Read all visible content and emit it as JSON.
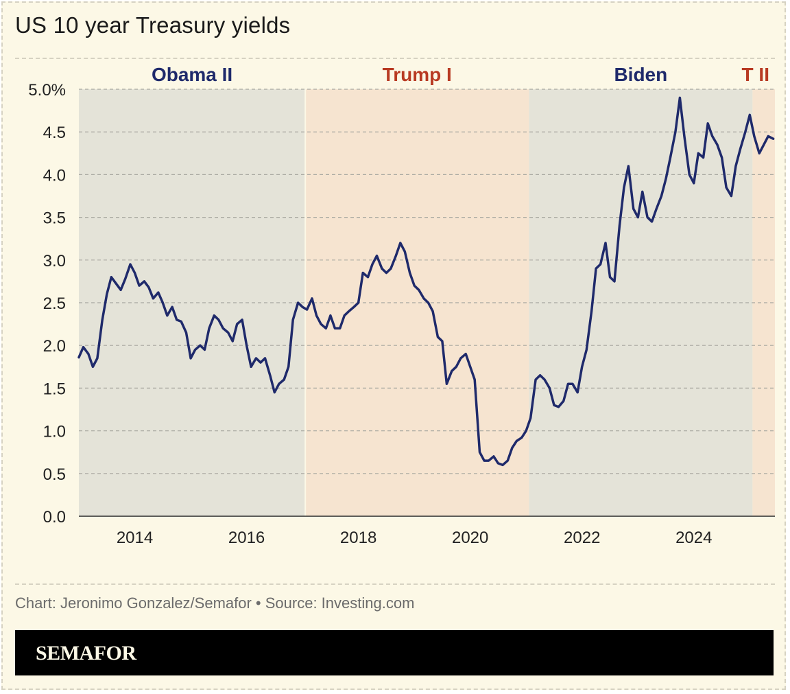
{
  "header": {
    "title": "US 10 year Treasury yields"
  },
  "footer": {
    "credit": "Chart: Jeronimo Gonzalez/Semafor • Source: Investing.com",
    "brand": "SEMAFOR"
  },
  "colors": {
    "background": "#fcf8e6",
    "democrat_band": "#e4e3d8",
    "republican_band": "#f6e4d0",
    "democrat_label": "#1f2a6b",
    "republican_label": "#b83a22",
    "line": "#1f2a6b",
    "grid": "#a8a8a0"
  },
  "chart_data": {
    "type": "line",
    "title": "US 10 year Treasury yields",
    "xlabel": "",
    "ylabel": "",
    "xlim": [
      2013.0,
      2025.45
    ],
    "ylim": [
      0,
      5
    ],
    "x_ticks": [
      2014,
      2016,
      2018,
      2020,
      2022,
      2024
    ],
    "y_ticks": [
      {
        "value": 0.0,
        "label": "0.0"
      },
      {
        "value": 0.5,
        "label": "0.5"
      },
      {
        "value": 1.0,
        "label": "1.0"
      },
      {
        "value": 1.5,
        "label": "1.5"
      },
      {
        "value": 2.0,
        "label": "2.0"
      },
      {
        "value": 2.5,
        "label": "2.5"
      },
      {
        "value": 3.0,
        "label": "3.0"
      },
      {
        "value": 3.5,
        "label": "3.5"
      },
      {
        "value": 4.0,
        "label": "4.0"
      },
      {
        "value": 4.5,
        "label": "4.5"
      },
      {
        "value": 5.0,
        "label": "5.0%"
      }
    ],
    "grid": "horizontal dashed",
    "bands": [
      {
        "label": "Obama II",
        "start": 2013.0,
        "end": 2017.05,
        "party": "democrat"
      },
      {
        "label": "Trump I",
        "start": 2017.05,
        "end": 2021.05,
        "party": "republican"
      },
      {
        "label": "Biden",
        "start": 2021.05,
        "end": 2025.05,
        "party": "democrat"
      },
      {
        "label": "T II",
        "start": 2025.05,
        "end": 2025.45,
        "party": "republican"
      }
    ],
    "series": [
      {
        "x": [
          2013.0,
          2013.08,
          2013.17,
          2013.25,
          2013.33,
          2013.42,
          2013.5,
          2013.58,
          2013.67,
          2013.75,
          2013.83,
          2013.92,
          2014.0,
          2014.08,
          2014.17,
          2014.25,
          2014.33,
          2014.42,
          2014.5,
          2014.58,
          2014.67,
          2014.75,
          2014.83,
          2014.92,
          2015.0,
          2015.08,
          2015.17,
          2015.25,
          2015.33,
          2015.42,
          2015.5,
          2015.58,
          2015.67,
          2015.75,
          2015.83,
          2015.92,
          2016.0,
          2016.08,
          2016.17,
          2016.25,
          2016.33,
          2016.42,
          2016.5,
          2016.58,
          2016.67,
          2016.75,
          2016.83,
          2016.92,
          2017.0,
          2017.08,
          2017.17,
          2017.25,
          2017.33,
          2017.42,
          2017.5,
          2017.58,
          2017.67,
          2017.75,
          2017.83,
          2017.92,
          2018.0,
          2018.08,
          2018.17,
          2018.25,
          2018.33,
          2018.42,
          2018.5,
          2018.58,
          2018.67,
          2018.75,
          2018.83,
          2018.92,
          2019.0,
          2019.08,
          2019.17,
          2019.25,
          2019.33,
          2019.42,
          2019.5,
          2019.58,
          2019.67,
          2019.75,
          2019.83,
          2019.92,
          2020.0,
          2020.08,
          2020.17,
          2020.25,
          2020.33,
          2020.42,
          2020.5,
          2020.58,
          2020.67,
          2020.75,
          2020.83,
          2020.92,
          2021.0,
          2021.08,
          2021.17,
          2021.25,
          2021.33,
          2021.42,
          2021.5,
          2021.58,
          2021.67,
          2021.75,
          2021.83,
          2021.92,
          2022.0,
          2022.08,
          2022.17,
          2022.25,
          2022.33,
          2022.42,
          2022.5,
          2022.58,
          2022.67,
          2022.75,
          2022.83,
          2022.92,
          2023.0,
          2023.08,
          2023.17,
          2023.25,
          2023.33,
          2023.42,
          2023.5,
          2023.58,
          2023.67,
          2023.75,
          2023.83,
          2023.92,
          2024.0,
          2024.08,
          2024.17,
          2024.25,
          2024.33,
          2024.42,
          2024.5,
          2024.58,
          2024.67,
          2024.75,
          2024.83,
          2024.92,
          2025.0,
          2025.08,
          2025.17,
          2025.25,
          2025.33,
          2025.42
        ],
        "values": [
          1.86,
          1.98,
          1.9,
          1.75,
          1.85,
          2.3,
          2.6,
          2.8,
          2.72,
          2.65,
          2.78,
          2.95,
          2.85,
          2.7,
          2.75,
          2.68,
          2.55,
          2.62,
          2.5,
          2.35,
          2.45,
          2.3,
          2.28,
          2.15,
          1.85,
          1.95,
          2.0,
          1.95,
          2.2,
          2.35,
          2.3,
          2.2,
          2.15,
          2.05,
          2.25,
          2.3,
          2.0,
          1.75,
          1.85,
          1.8,
          1.85,
          1.65,
          1.45,
          1.55,
          1.6,
          1.75,
          2.3,
          2.5,
          2.45,
          2.42,
          2.55,
          2.35,
          2.25,
          2.2,
          2.35,
          2.2,
          2.2,
          2.35,
          2.4,
          2.45,
          2.5,
          2.85,
          2.8,
          2.95,
          3.05,
          2.9,
          2.85,
          2.9,
          3.05,
          3.2,
          3.1,
          2.85,
          2.7,
          2.65,
          2.55,
          2.5,
          2.4,
          2.1,
          2.05,
          1.55,
          1.7,
          1.75,
          1.85,
          1.9,
          1.75,
          1.6,
          0.75,
          0.65,
          0.65,
          0.7,
          0.62,
          0.6,
          0.65,
          0.8,
          0.88,
          0.92,
          1.0,
          1.15,
          1.6,
          1.65,
          1.6,
          1.5,
          1.3,
          1.28,
          1.35,
          1.55,
          1.55,
          1.45,
          1.75,
          1.95,
          2.4,
          2.9,
          2.95,
          3.2,
          2.8,
          2.75,
          3.4,
          3.85,
          4.1,
          3.6,
          3.5,
          3.8,
          3.5,
          3.45,
          3.6,
          3.75,
          3.95,
          4.2,
          4.5,
          4.9,
          4.45,
          4.0,
          3.9,
          4.25,
          4.2,
          4.6,
          4.45,
          4.35,
          4.2,
          3.85,
          3.75,
          4.1,
          4.3,
          4.5,
          4.7,
          4.45,
          4.25,
          4.35,
          4.45,
          4.42
        ]
      }
    ]
  }
}
